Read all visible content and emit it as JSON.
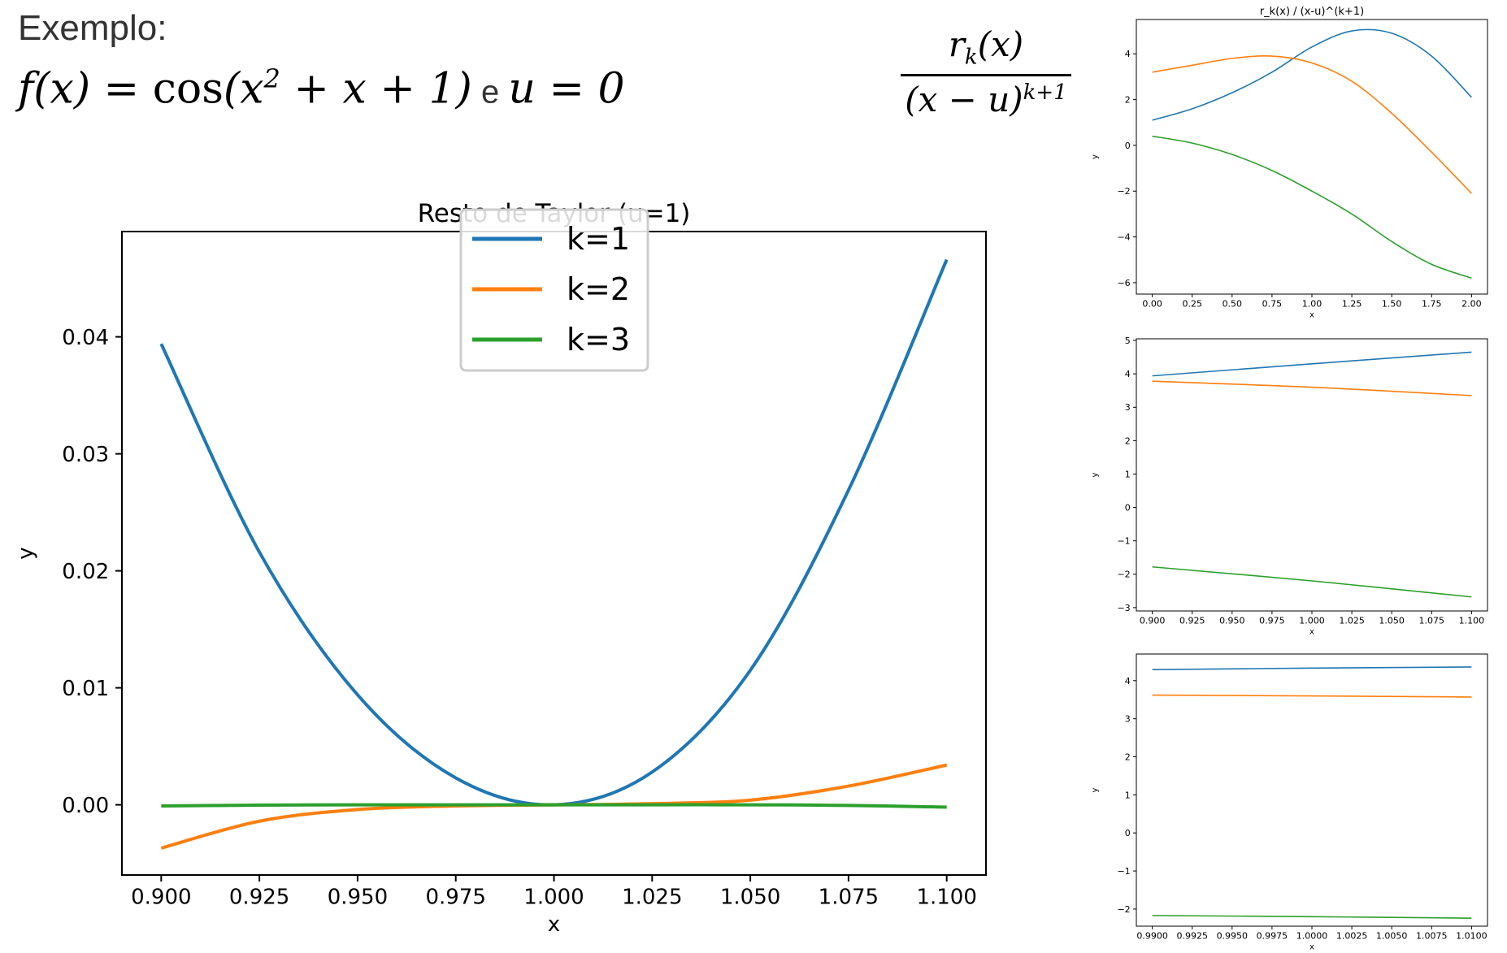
{
  "header": {
    "exemplo": "Exemplo:",
    "f_lhs": "f(x) = ",
    "f_cos": "cos",
    "f_open": "(x",
    "f_exp": "2",
    "f_rest": " + x + 1)",
    "f_conj": " e ",
    "f_u": "u = 0",
    "frac_r": "r",
    "frac_k": "k",
    "frac_x": "(x)",
    "frac_den": "(x − u)",
    "frac_den_exp": "k+1"
  },
  "colors": {
    "k1": "#1f77b4",
    "k2": "#ff7f0e",
    "k3": "#2ca02c"
  },
  "chart_data": [
    {
      "type": "line",
      "title": "Resto de Taylor (u=1)",
      "xlabel": "x",
      "ylabel": "y",
      "xlim": [
        0.89,
        1.11
      ],
      "ylim": [
        -0.006,
        0.049
      ],
      "xticks": [
        0.9,
        0.925,
        0.95,
        0.975,
        1.0,
        1.025,
        1.05,
        1.075,
        1.1
      ],
      "xtick_labels": [
        "0.900",
        "0.925",
        "0.950",
        "0.975",
        "1.000",
        "1.025",
        "1.050",
        "1.075",
        "1.100"
      ],
      "yticks": [
        0.0,
        0.01,
        0.02,
        0.03,
        0.04
      ],
      "ytick_labels": [
        "0.00",
        "0.01",
        "0.02",
        "0.03",
        "0.04"
      ],
      "legend": "upper-center",
      "x": [
        0.9,
        0.925,
        0.95,
        0.975,
        1.0,
        1.025,
        1.05,
        1.075,
        1.1
      ],
      "series": [
        {
          "name": "k=1",
          "values": [
            0.0394,
            0.0216,
            0.0094,
            0.0023,
            0.0,
            0.0028,
            0.0115,
            0.0269,
            0.0466
          ]
        },
        {
          "name": "k=2",
          "values": [
            -0.0037,
            -0.0014,
            -0.0004,
            -0.0001,
            0.0,
            0.0001,
            0.0004,
            0.0016,
            0.0034
          ]
        },
        {
          "name": "k=3",
          "values": [
            -0.0001,
            -3e-05,
            0.0,
            0.0,
            0.0,
            0.0,
            0.0,
            -5e-05,
            -0.0002
          ]
        }
      ]
    },
    {
      "type": "line",
      "title": "r_k(x) / (x-u)^(k+1)",
      "xlabel": "x",
      "ylabel": "y",
      "xlim": [
        -0.1,
        2.1
      ],
      "ylim": [
        -6.5,
        5.5
      ],
      "xticks": [
        0,
        0.25,
        0.5,
        0.75,
        1.0,
        1.25,
        1.5,
        1.75,
        2.0
      ],
      "xtick_labels": [
        "0.00",
        "0.25",
        "0.50",
        "0.75",
        "1.00",
        "1.25",
        "1.50",
        "1.75",
        "2.00"
      ],
      "yticks": [
        -6,
        -4,
        -2,
        0,
        2,
        4
      ],
      "ytick_labels": [
        "−6",
        "−4",
        "−2",
        "0",
        "2",
        "4"
      ],
      "x": [
        0,
        0.25,
        0.5,
        0.75,
        1.0,
        1.25,
        1.5,
        1.75,
        2.0
      ],
      "series": [
        {
          "values": [
            1.1,
            1.6,
            2.3,
            3.2,
            4.3,
            5.0,
            4.9,
            3.9,
            2.1
          ]
        },
        {
          "values": [
            3.2,
            3.5,
            3.8,
            3.9,
            3.6,
            2.8,
            1.4,
            -0.3,
            -2.1
          ]
        },
        {
          "values": [
            0.4,
            0.1,
            -0.4,
            -1.1,
            -2.0,
            -3.0,
            -4.2,
            -5.2,
            -5.8
          ]
        }
      ]
    },
    {
      "type": "line",
      "xlabel": "x",
      "ylabel": "y",
      "xlim": [
        0.89,
        1.11
      ],
      "ylim": [
        -3.1,
        5.05
      ],
      "xticks": [
        0.9,
        0.925,
        0.95,
        0.975,
        1.0,
        1.025,
        1.05,
        1.075,
        1.1
      ],
      "xtick_labels": [
        "0.900",
        "0.925",
        "0.950",
        "0.975",
        "1.000",
        "1.025",
        "1.050",
        "1.075",
        "1.100"
      ],
      "yticks": [
        -3,
        -2,
        -1,
        0,
        1,
        2,
        3,
        4,
        5
      ],
      "ytick_labels": [
        "−3",
        "−2",
        "−1",
        "0",
        "1",
        "2",
        "3",
        "4",
        "5"
      ],
      "x": [
        0.9,
        1.0,
        1.1
      ],
      "series": [
        {
          "values": [
            3.94,
            4.3,
            4.65
          ]
        },
        {
          "values": [
            3.78,
            3.6,
            3.35
          ]
        },
        {
          "values": [
            -1.78,
            -2.2,
            -2.68
          ]
        }
      ]
    },
    {
      "type": "line",
      "xlabel": "x",
      "ylabel": "y",
      "xlim": [
        0.989,
        1.011
      ],
      "ylim": [
        -2.45,
        4.7
      ],
      "xticks": [
        0.99,
        0.9925,
        0.995,
        0.9975,
        1.0,
        1.0025,
        1.005,
        1.0075,
        1.01
      ],
      "xtick_labels": [
        "0.9900",
        "0.9925",
        "0.9950",
        "0.9975",
        "1.0000",
        "1.0025",
        "1.0050",
        "1.0075",
        "1.0100"
      ],
      "yticks": [
        -2,
        -1,
        0,
        1,
        2,
        3,
        4
      ],
      "ytick_labels": [
        "−2",
        "−1",
        "0",
        "1",
        "2",
        "3",
        "4"
      ],
      "x": [
        0.99,
        1.0,
        1.01
      ],
      "series": [
        {
          "values": [
            4.29,
            4.33,
            4.36
          ]
        },
        {
          "values": [
            3.62,
            3.6,
            3.57
          ]
        },
        {
          "values": [
            -2.17,
            -2.2,
            -2.24
          ]
        }
      ]
    }
  ]
}
